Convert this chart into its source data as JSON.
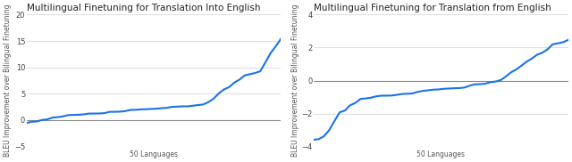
{
  "title1": "Multilingual Finetuning for Translation Into English",
  "title2": "Multilingual Finetuning for Translation from English",
  "xlabel": "50 Languages",
  "ylabel": "BLEU Improvement over Bilingual Finetuning",
  "line_color": "#1a73e8",
  "line_width": 1.5,
  "ylim1": [
    -5,
    20
  ],
  "ylim2": [
    -4,
    4
  ],
  "yticks1": [
    -5,
    0,
    5,
    10,
    15,
    20
  ],
  "yticks2": [
    -4,
    -2,
    0,
    2,
    4
  ],
  "n_points": 50,
  "background_color": "#ffffff",
  "grid_color": "#d0d0d0",
  "zero_line_color": "#888888",
  "title_fontsize": 7.5,
  "label_fontsize": 5.5,
  "tick_fontsize": 6.0
}
